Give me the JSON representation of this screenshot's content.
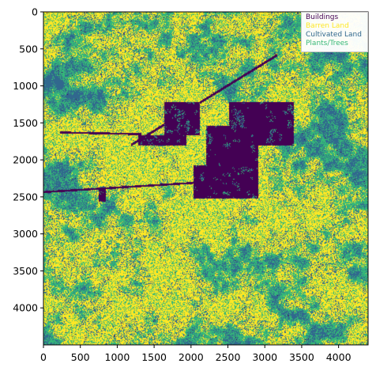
{
  "figure": {
    "image_extent": {
      "x": [
        0,
        4400
      ],
      "y": [
        4500,
        0
      ]
    },
    "x_ticks": [
      "0",
      "500",
      "1000",
      "1500",
      "2000",
      "2500",
      "3000",
      "3500",
      "4000"
    ],
    "y_ticks": [
      "0",
      "500",
      "1000",
      "1500",
      "2000",
      "2500",
      "3000",
      "3500",
      "4000"
    ],
    "x_tick_values": [
      0,
      500,
      1000,
      1500,
      2000,
      2500,
      3000,
      3500,
      4000
    ],
    "y_tick_values": [
      0,
      500,
      1000,
      1500,
      2000,
      2500,
      3000,
      3500,
      4000
    ],
    "legend": {
      "placement": "top-right",
      "entries": [
        {
          "label": "Buildings",
          "color": "#440154"
        },
        {
          "label": "Barren Land",
          "color": "#fde725"
        },
        {
          "label": "Cultivated Land",
          "color": "#31688e"
        },
        {
          "label": "Plants/Trees",
          "color": "#35b779"
        }
      ]
    },
    "colormap": "viridis"
  }
}
